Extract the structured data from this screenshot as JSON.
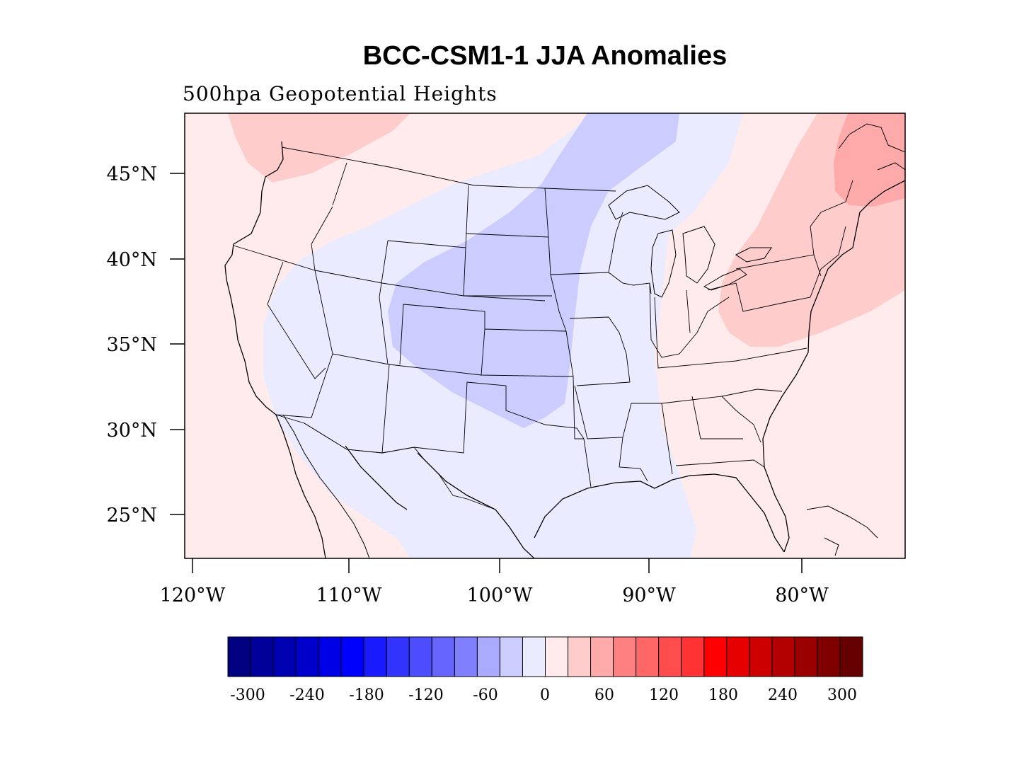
{
  "title": "BCC-CSM1-1 JJA Anomalies",
  "subtitle": "500hpa Geopotential Heights",
  "map": {
    "lat_ticks": [
      "45°N",
      "40°N",
      "35°N",
      "30°N",
      "25°N"
    ],
    "lon_ticks": [
      "120°W",
      "110°W",
      "100°W",
      "90°W",
      "80°W"
    ],
    "lat_range": [
      22.5,
      48.5
    ],
    "lon_range": [
      -120.5,
      -73.5
    ],
    "regions": [
      {
        "name": "strong-negative-anomaly-central",
        "level": "-30 to 0",
        "color": "#ccccff"
      },
      {
        "name": "weak-negative-anomaly",
        "level": "-15 to 0",
        "color": "#ebebff"
      },
      {
        "name": "weak-positive-anomaly",
        "level": "0 to 15",
        "color": "#ffebeb"
      },
      {
        "name": "positive-anomaly-northeast",
        "level": "15 to 30",
        "color": "#ffcccc"
      },
      {
        "name": "positive-anomaly-northwest",
        "level": "15 to 30",
        "color": "#ffcccc"
      },
      {
        "name": "strong-positive-anomaly-maritimes",
        "level": "30 to 45",
        "color": "#ffaaaa"
      }
    ]
  },
  "colorbar": {
    "labels": [
      "-300",
      "-240",
      "-180",
      "-120",
      "-60",
      "0",
      "60",
      "120",
      "180",
      "240",
      "300"
    ],
    "colors": [
      "#000080",
      "#00009a",
      "#0000b3",
      "#0000cd",
      "#0000e6",
      "#0000ff",
      "#1a1aff",
      "#3333ff",
      "#4d4dff",
      "#6666ff",
      "#8080ff",
      "#aaaaff",
      "#ccccff",
      "#ebebff",
      "#ffebeb",
      "#ffcccc",
      "#ffaaaa",
      "#ff8080",
      "#ff6666",
      "#ff4d4d",
      "#ff3333",
      "#ff0000",
      "#e60000",
      "#cd0000",
      "#b30000",
      "#9a0000",
      "#800000",
      "#660000"
    ]
  }
}
